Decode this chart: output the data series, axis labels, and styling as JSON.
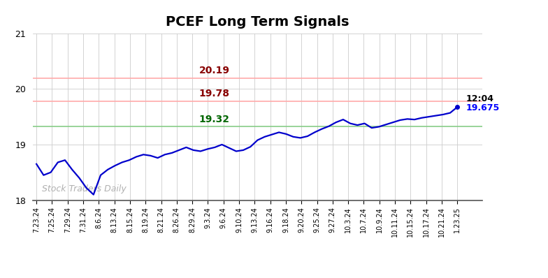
{
  "title": "PCEF Long Term Signals",
  "title_fontsize": 14,
  "title_fontweight": "bold",
  "background_color": "#ffffff",
  "grid_color": "#cccccc",
  "line_color": "#0000cc",
  "line_width": 1.6,
  "hline_red1": 20.19,
  "hline_red2": 19.78,
  "hline_green": 19.32,
  "hline_red_color": "#ffaaaa",
  "hline_green_color": "#88cc88",
  "label_red1": "20.19",
  "label_red2": "19.78",
  "label_green": "19.32",
  "label_red_color": "#880000",
  "label_green_color": "#006600",
  "label_fontsize": 10,
  "label_fontweight": "bold",
  "watermark": "Stock Traders Daily",
  "watermark_color": "#b0b0b0",
  "watermark_fontsize": 9,
  "last_label_time": "12:04",
  "last_label_price": "19.675",
  "last_label_price_color": "#0000ff",
  "last_label_time_color": "#000000",
  "last_label_fontsize": 9,
  "last_label_fontweight": "bold",
  "ylim": [
    18.0,
    21.0
  ],
  "yticks": [
    18,
    19,
    20,
    21
  ],
  "x_labels": [
    "7.23.24",
    "7.25.24",
    "7.29.24",
    "7.31.24",
    "8.6.24",
    "8.13.24",
    "8.15.24",
    "8.19.24",
    "8.21.24",
    "8.26.24",
    "8.29.24",
    "9.3.24",
    "9.6.24",
    "9.10.24",
    "9.13.24",
    "9.16.24",
    "9.18.24",
    "9.20.24",
    "9.25.24",
    "9.27.24",
    "10.3.24",
    "10.7.24",
    "10.9.24",
    "10.11.24",
    "10.15.24",
    "10.17.24",
    "10.21.24",
    "1.23.25"
  ],
  "price_data": [
    18.65,
    18.45,
    18.5,
    18.68,
    18.72,
    18.55,
    18.4,
    18.22,
    18.1,
    18.45,
    18.55,
    18.62,
    18.68,
    18.72,
    18.78,
    18.82,
    18.8,
    18.76,
    18.82,
    18.85,
    18.9,
    18.95,
    18.9,
    18.88,
    18.92,
    18.95,
    19.0,
    18.94,
    18.88,
    18.9,
    18.96,
    19.08,
    19.14,
    19.18,
    19.22,
    19.19,
    19.14,
    19.12,
    19.15,
    19.22,
    19.28,
    19.33,
    19.4,
    19.45,
    19.38,
    19.35,
    19.38,
    19.3,
    19.32,
    19.36,
    19.4,
    19.44,
    19.46,
    19.45,
    19.48,
    19.5,
    19.52,
    19.54,
    19.57,
    19.675
  ]
}
